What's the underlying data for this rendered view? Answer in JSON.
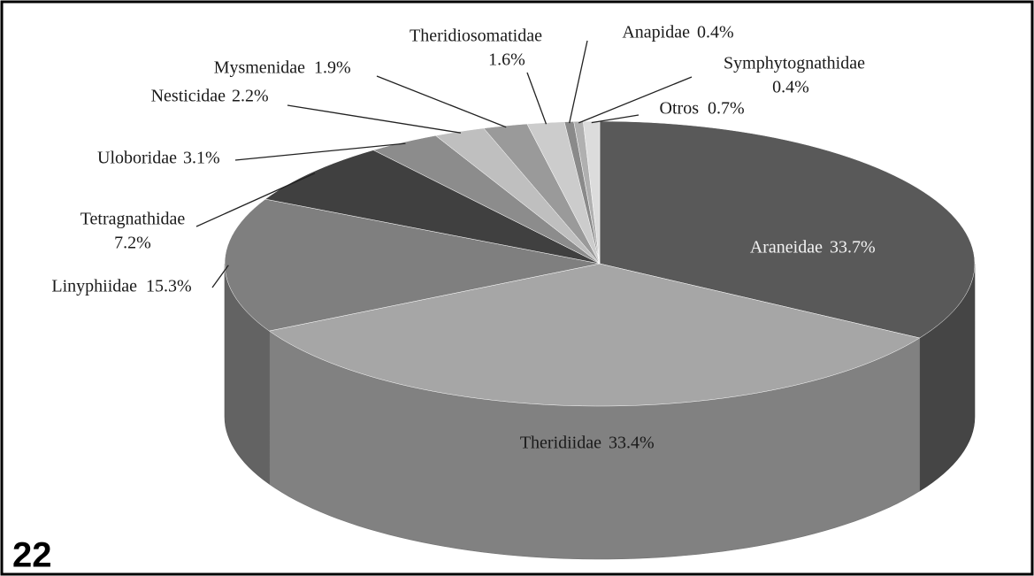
{
  "chart_data": {
    "type": "pie",
    "panel_label": "22",
    "categories": [
      "Araneidae",
      "Theridiidae",
      "Linyphiidae",
      "Tetragnathidae",
      "Uloboridae",
      "Nesticidae",
      "Mysmenidae",
      "Theridiosomatidae",
      "Anapidae",
      "Symphytognathidae",
      "Otros"
    ],
    "values": [
      33.7,
      33.4,
      15.3,
      7.2,
      3.1,
      2.2,
      1.9,
      1.6,
      0.4,
      0.4,
      0.7
    ],
    "value_labels": [
      "33.7%",
      "33.4%",
      "15.3%",
      "7.2%",
      "3.1%",
      "2.2%",
      "1.9%",
      "1.6%",
      "0.4%",
      "0.4%",
      "0.7%"
    ],
    "colors": [
      "#595959",
      "#a6a6a6",
      "#7f7f7f",
      "#404040",
      "#8c8c8c",
      "#bfbfbf",
      "#9a9a9a",
      "#cccccc",
      "#8a8a8a",
      "#b0b0b0",
      "#dcdcdc"
    ]
  }
}
